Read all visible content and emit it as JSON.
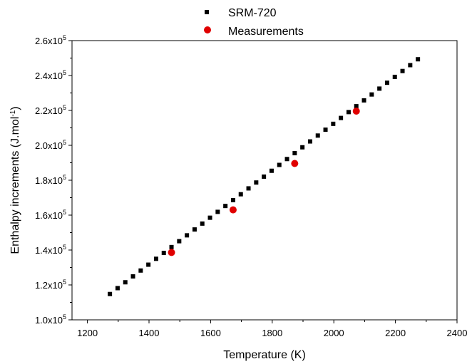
{
  "chart_data": {
    "type": "scatter",
    "xlabel": "Temperature (K)",
    "ylabel": "Enthalpy increments (J.mol",
    "ylabel_sup": "-1",
    "ylabel_close": ")",
    "xlim": [
      1150,
      2400
    ],
    "ylim": [
      100000,
      260000
    ],
    "xticks": [
      1200,
      1400,
      1600,
      1800,
      2000,
      2200,
      2400
    ],
    "xtick_labels": [
      "1200",
      "1400",
      "1600",
      "1800",
      "2000",
      "2200",
      "2400"
    ],
    "yticks": [
      100000,
      120000,
      140000,
      160000,
      180000,
      200000,
      220000,
      240000,
      260000
    ],
    "ytick_labels": [
      {
        "mantissa": "1.0x10",
        "exp": "5"
      },
      {
        "mantissa": "1.2x10",
        "exp": "5"
      },
      {
        "mantissa": "1.4x10",
        "exp": "5"
      },
      {
        "mantissa": "1.6x10",
        "exp": "5"
      },
      {
        "mantissa": "1.8x10",
        "exp": "5"
      },
      {
        "mantissa": "2.0x10",
        "exp": "5"
      },
      {
        "mantissa": "2.2x10",
        "exp": "5"
      },
      {
        "mantissa": "2.4x10",
        "exp": "5"
      },
      {
        "mantissa": "2.6x10",
        "exp": "5"
      }
    ],
    "legend_position": "top-center",
    "series": [
      {
        "name": "SRM-720",
        "marker": "square",
        "color": "#000000",
        "x_start": 1273,
        "x_step": 25,
        "count": 41,
        "y_start": 114800,
        "y_end": 249300
      },
      {
        "name": "Measurements",
        "marker": "circle",
        "color": "#e00000",
        "x": [
          1473,
          1673,
          1873,
          2073
        ],
        "y": [
          138600,
          163000,
          189600,
          219600
        ]
      }
    ]
  }
}
